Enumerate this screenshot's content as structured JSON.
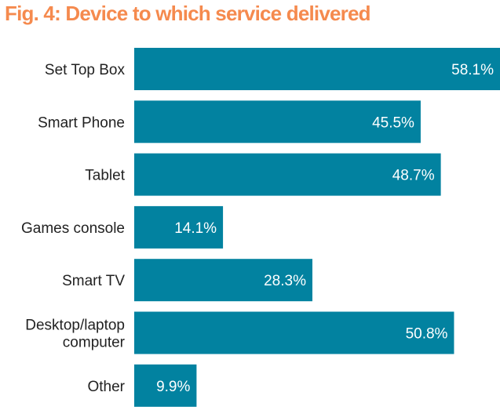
{
  "chart_data": {
    "type": "bar",
    "orientation": "horizontal",
    "title": "Fig. 4: Device to which service delivered",
    "xlabel": "",
    "ylabel": "",
    "categories": [
      [
        "Set Top Box"
      ],
      [
        "Smart Phone"
      ],
      [
        "Tablet"
      ],
      [
        "Games console"
      ],
      [
        "Smart TV"
      ],
      [
        "Desktop/laptop",
        "computer"
      ],
      [
        "Other"
      ]
    ],
    "values": [
      58.1,
      45.5,
      48.7,
      14.1,
      28.3,
      50.8,
      9.9
    ],
    "labels": [
      "58.1%",
      "45.5%",
      "48.7%",
      "14.1%",
      "28.3%",
      "50.8%",
      "9.9%"
    ],
    "unit": "%",
    "xlim": [
      0,
      58.1
    ],
    "grid": false,
    "legend": "none",
    "colors": {
      "bar": "#0282a0",
      "title": "#f58a4e",
      "label": "#222222",
      "value_label": "#ffffff"
    }
  }
}
